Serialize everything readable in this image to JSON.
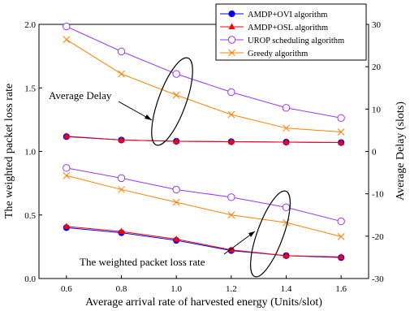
{
  "chart_data": {
    "type": "line",
    "xlabel": "Average arrival rate of  harvested energy (Units/slot)",
    "ylabel_left": "The weighted packet loss rate",
    "ylabel_right": "Average Delay (slots)",
    "x": [
      0.6,
      0.8,
      1.0,
      1.2,
      1.4,
      1.6
    ],
    "x_ticks": [
      "0.6",
      "0.8",
      "1.0",
      "1.2",
      "1.4",
      "1.6"
    ],
    "xlim": [
      0.5,
      1.7
    ],
    "ylim_left": [
      0.0,
      2.0
    ],
    "ylim_right": [
      -30,
      30
    ],
    "left_ticks": [
      "0.0",
      "0.5",
      "1.0",
      "1.5",
      "2.0"
    ],
    "right_ticks": [
      "-30",
      "-20",
      "-10",
      "0",
      "10",
      "20",
      "30"
    ],
    "legend_position": "top-right",
    "series": [
      {
        "name": "AMDP+OVI algorithm",
        "color": "#0000ff",
        "marker": "filled-circle",
        "loss": [
          0.4,
          0.36,
          0.3,
          0.22,
          0.18,
          0.165
        ],
        "delay": [
          3.5,
          2.7,
          2.4,
          2.3,
          2.2,
          2.1
        ]
      },
      {
        "name": "AMDP+OSL algorithm",
        "color": "#ff0000",
        "marker": "filled-triangle",
        "loss": [
          0.41,
          0.37,
          0.31,
          0.225,
          0.18,
          0.17
        ],
        "delay": [
          3.6,
          2.7,
          2.4,
          2.3,
          2.2,
          2.1
        ]
      },
      {
        "name": "UROP scheduling algorithm",
        "color": "#9933ff",
        "marker": "open-circle",
        "loss": [
          0.87,
          0.79,
          0.7,
          0.64,
          0.56,
          0.45
        ],
        "delay": [
          29.5,
          23.6,
          18.3,
          14.0,
          10.3,
          7.9
        ]
      },
      {
        "name": "Greedy algorithm",
        "color": "#ff8000",
        "marker": "x",
        "loss": [
          0.81,
          0.7,
          0.6,
          0.5,
          0.44,
          0.33
        ],
        "delay": [
          26.4,
          18.3,
          13.3,
          8.7,
          5.5,
          4.6
        ]
      }
    ],
    "annotations": [
      "Average Delay",
      "The weighted packet loss rate"
    ]
  }
}
